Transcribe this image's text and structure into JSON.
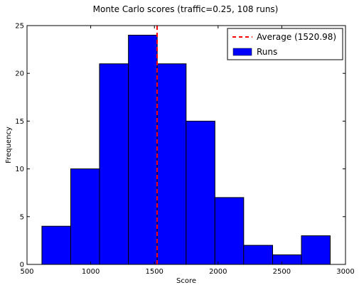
{
  "chart_data": {
    "type": "bar",
    "title": "Monte Carlo scores (traffic=0.25, 108 runs)",
    "xlabel": "Score",
    "ylabel": "Frequency",
    "xlim": [
      500,
      3000
    ],
    "ylim": [
      0,
      25
    ],
    "xticks": [
      500,
      1000,
      1500,
      2000,
      2500,
      3000
    ],
    "yticks": [
      0,
      5,
      10,
      15,
      20,
      25
    ],
    "bin_edges": [
      617,
      843,
      1069,
      1296,
      1522,
      1749,
      1975,
      2201,
      2428,
      2654,
      2880
    ],
    "series": [
      {
        "name": "Runs",
        "values": [
          4,
          10,
          21,
          24,
          21,
          15,
          7,
          2,
          1,
          3
        ]
      }
    ],
    "average": {
      "value": 1520.98,
      "label": "Average (1520.98)"
    },
    "colors": {
      "bars": "#0000ff",
      "average": "#ff0000",
      "edges": "#000000"
    },
    "legend_position": "top-right",
    "grid": false
  }
}
